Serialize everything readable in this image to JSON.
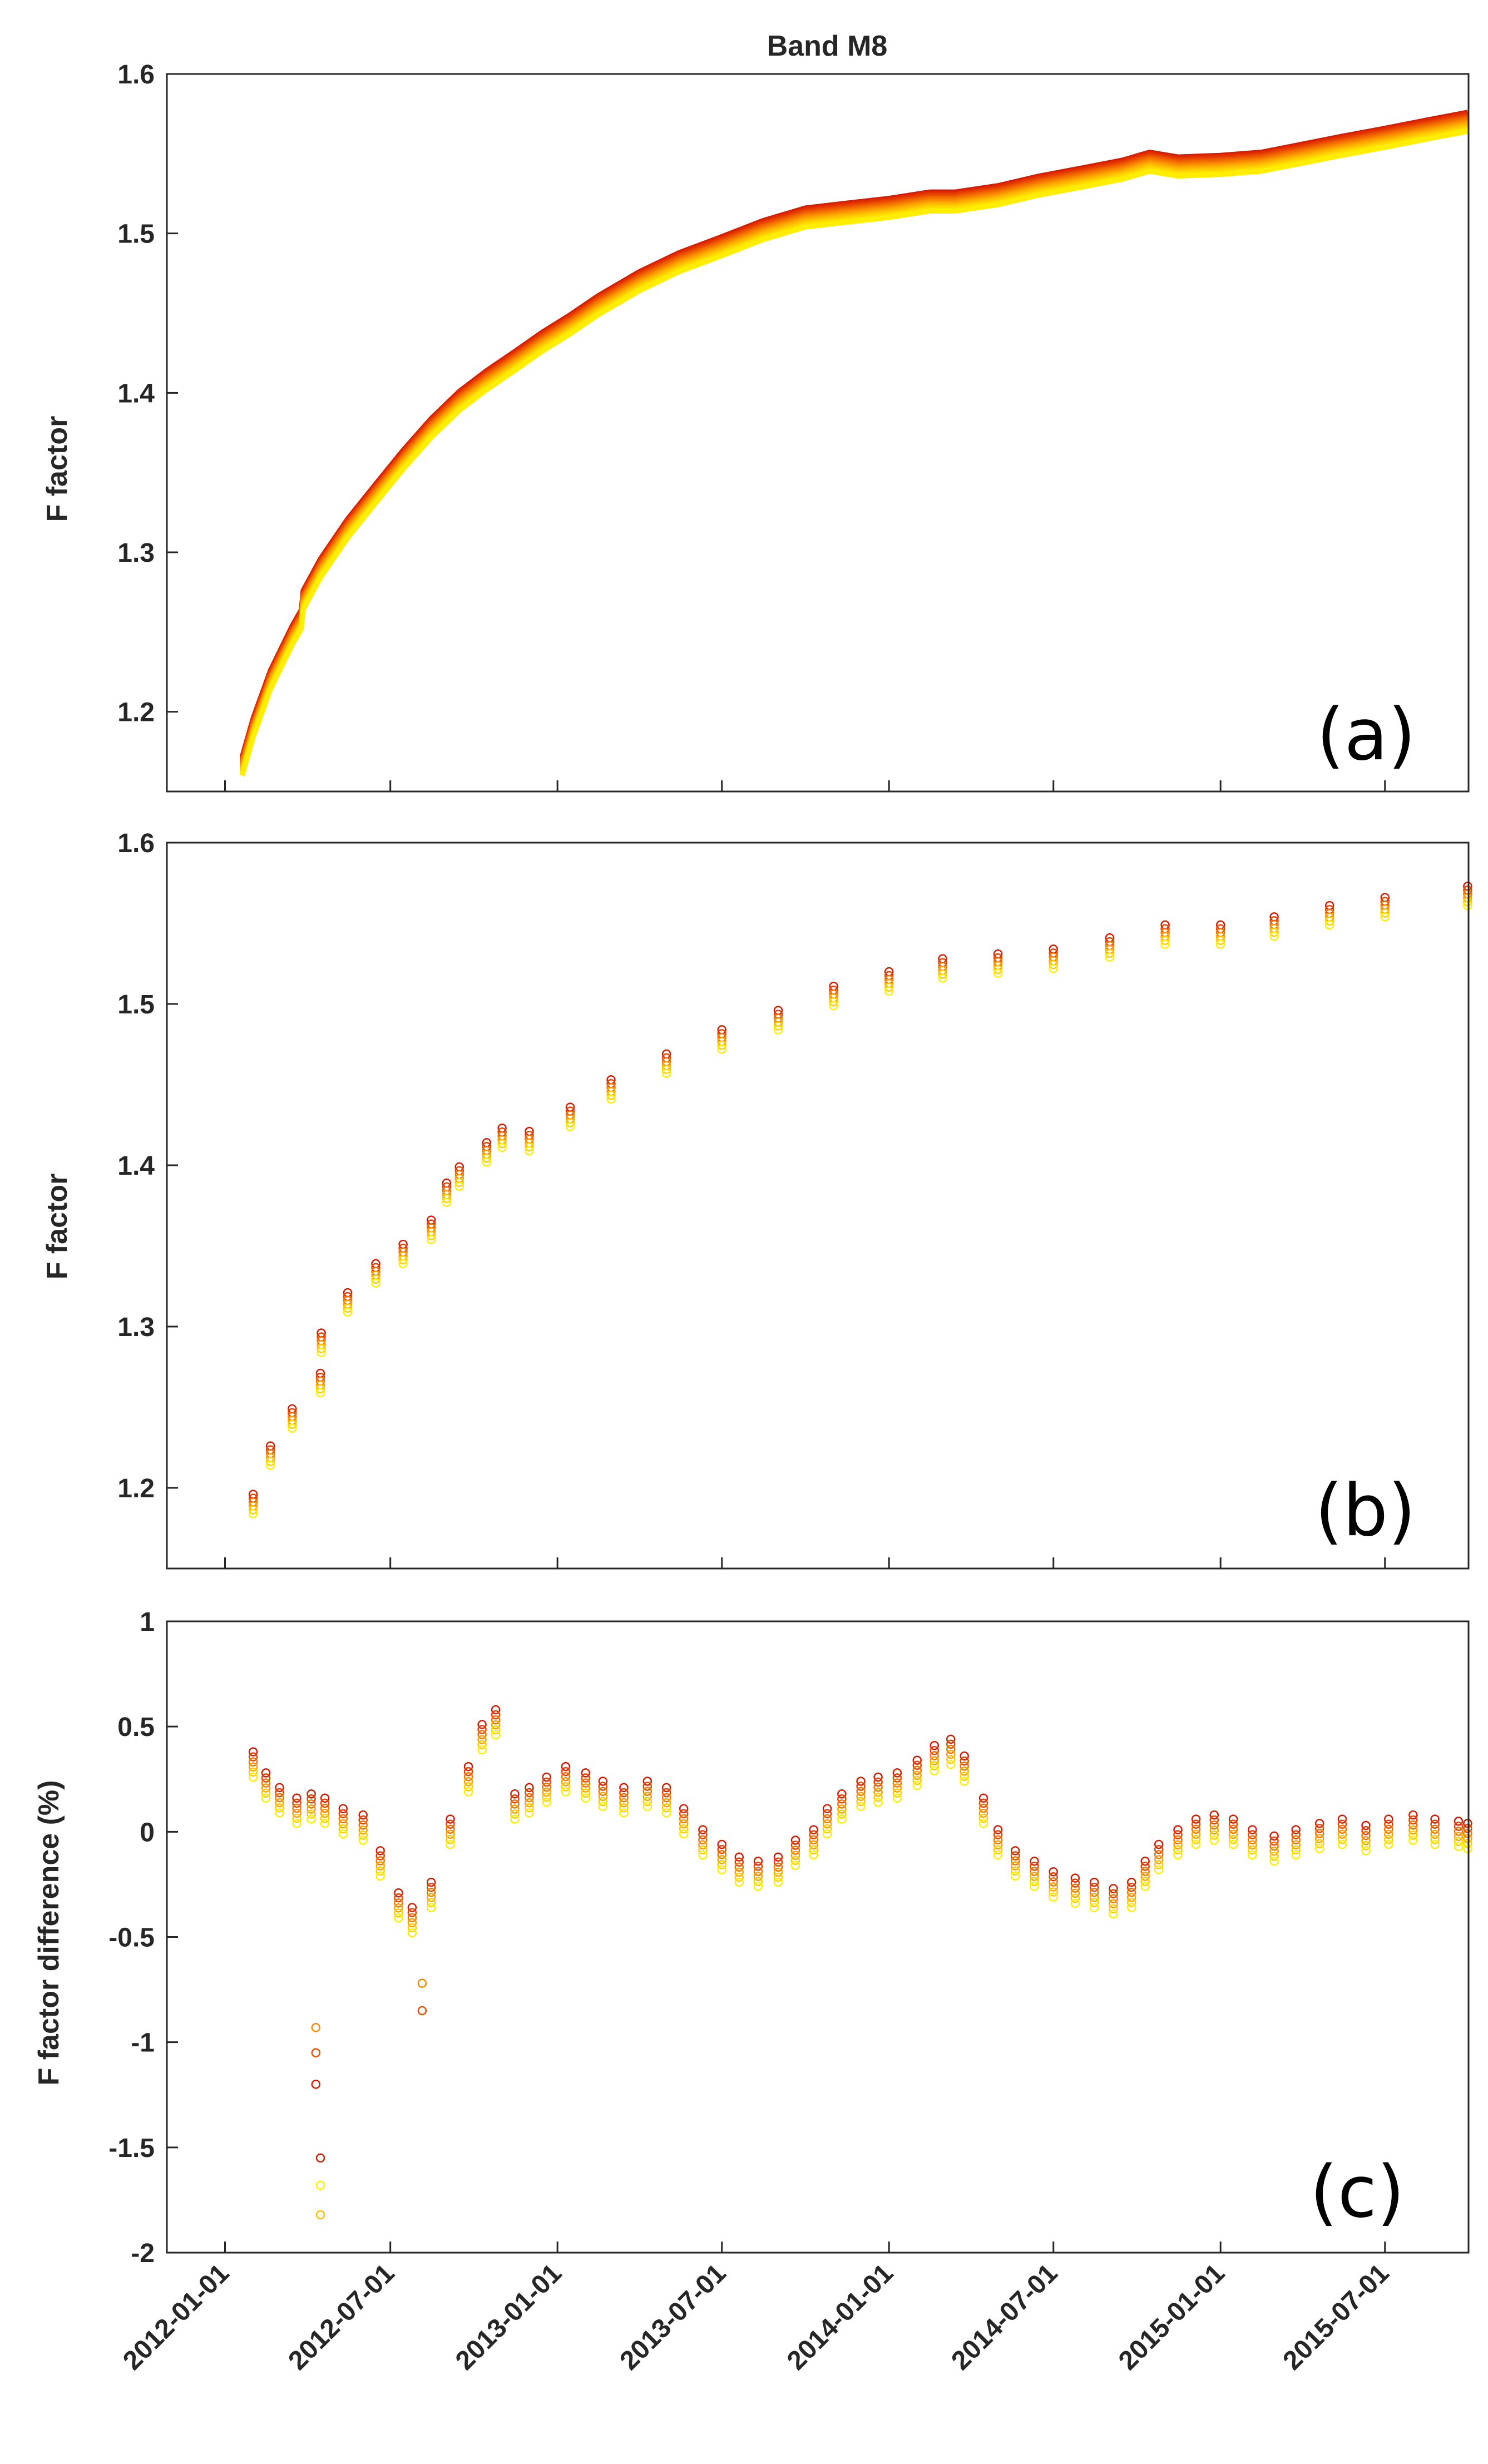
{
  "figure": {
    "title": "Band M8",
    "x_tick_labels": [
      "2012-01-01",
      "2012-07-01",
      "2013-01-01",
      "2013-07-01",
      "2014-01-01",
      "2014-07-01",
      "2015-01-01",
      "2015-07-01"
    ]
  },
  "colors": {
    "axis": "#262626",
    "series_gradient": [
      "#d81b00",
      "#e43a00",
      "#f06400",
      "#f88a00",
      "#fcb000",
      "#ffd000",
      "#ffee00"
    ]
  },
  "chart_data": [
    {
      "type": "line",
      "panel_label": "(a)",
      "title": "Band M8",
      "xlabel": "",
      "ylabel": "F factor",
      "xlim": [
        "2011-10-29",
        "2015-10-01"
      ],
      "ylim": [
        1.15,
        1.6
      ],
      "yticks": [
        1.2,
        1.3,
        1.4,
        1.5,
        1.6
      ],
      "ytick_labels": [
        "1.2",
        "1.3",
        "1.4",
        "1.5",
        "1.6"
      ],
      "xticks": [
        "2012-01-01",
        "2012-07-01",
        "2013-01-01",
        "2013-07-01",
        "2014-01-01",
        "2014-07-01",
        "2015-01-01",
        "2015-07-01"
      ],
      "series_count": 16,
      "series_spread": 0.012,
      "x": [
        "2012-01-20",
        "2012-02-01",
        "2012-02-20",
        "2012-03-15",
        "2012-03-25",
        "2012-03-27",
        "2012-04-15",
        "2012-05-15",
        "2012-06-15",
        "2012-07-15",
        "2012-08-15",
        "2012-09-15",
        "2012-10-15",
        "2012-11-15",
        "2012-12-15",
        "2013-01-15",
        "2013-02-15",
        "2013-04-01",
        "2013-05-15",
        "2013-07-01",
        "2013-08-15",
        "2013-10-01",
        "2013-11-15",
        "2014-01-01",
        "2014-02-15",
        "2014-03-15",
        "2014-05-01",
        "2014-06-15",
        "2014-08-01",
        "2014-09-15",
        "2014-10-15",
        "2014-11-15",
        "2015-01-01",
        "2015-02-15",
        "2015-04-01",
        "2015-05-15",
        "2015-07-01",
        "2015-08-15",
        "2015-09-30"
      ],
      "values": [
        1.166,
        1.19,
        1.22,
        1.248,
        1.258,
        1.27,
        1.29,
        1.315,
        1.337,
        1.358,
        1.378,
        1.395,
        1.408,
        1.42,
        1.432,
        1.443,
        1.455,
        1.47,
        1.482,
        1.492,
        1.502,
        1.51,
        1.513,
        1.516,
        1.52,
        1.52,
        1.524,
        1.53,
        1.535,
        1.54,
        1.545,
        1.542,
        1.543,
        1.545,
        1.55,
        1.555,
        1.56,
        1.565,
        1.57
      ]
    },
    {
      "type": "scatter",
      "panel_label": "(b)",
      "xlabel": "",
      "ylabel": "F factor",
      "xlim": [
        "2011-10-29",
        "2015-10-01"
      ],
      "ylim": [
        1.15,
        1.6
      ],
      "yticks": [
        1.2,
        1.3,
        1.4,
        1.5,
        1.6
      ],
      "ytick_labels": [
        "1.2",
        "1.3",
        "1.4",
        "1.5",
        "1.6"
      ],
      "xticks": [
        "2012-01-01",
        "2012-07-01",
        "2013-01-01",
        "2013-07-01",
        "2014-01-01",
        "2014-07-01",
        "2015-01-01",
        "2015-07-01"
      ],
      "series_count": 6,
      "series_spread": 0.012,
      "x": [
        "2012-02-01",
        "2012-02-20",
        "2012-03-15",
        "2012-04-15",
        "2012-04-16",
        "2012-05-15",
        "2012-06-15",
        "2012-07-15",
        "2012-08-15",
        "2012-09-01",
        "2012-09-15",
        "2012-10-15",
        "2012-11-01",
        "2012-12-01",
        "2013-01-15",
        "2013-03-01",
        "2013-05-01",
        "2013-07-01",
        "2013-09-01",
        "2013-11-01",
        "2014-01-01",
        "2014-03-01",
        "2014-05-01",
        "2014-07-01",
        "2014-09-01",
        "2014-11-01",
        "2015-01-01",
        "2015-03-01",
        "2015-05-01",
        "2015-07-01",
        "2015-09-30"
      ],
      "values": [
        1.19,
        1.22,
        1.243,
        1.265,
        1.29,
        1.315,
        1.333,
        1.345,
        1.36,
        1.383,
        1.393,
        1.408,
        1.417,
        1.415,
        1.43,
        1.447,
        1.463,
        1.478,
        1.49,
        1.505,
        1.514,
        1.522,
        1.525,
        1.528,
        1.535,
        1.543,
        1.543,
        1.548,
        1.555,
        1.56,
        1.567
      ]
    },
    {
      "type": "scatter",
      "panel_label": "(c)",
      "xlabel": "",
      "ylabel": "F factor difference (%)",
      "xlim": [
        "2011-10-29",
        "2015-10-01"
      ],
      "ylim": [
        -2,
        1
      ],
      "yticks": [
        -2,
        -1.5,
        -1,
        -0.5,
        0,
        0.5,
        1
      ],
      "ytick_labels": [
        "-2",
        "-1.5",
        "-1",
        "-0.5",
        "0",
        "0.5",
        "1"
      ],
      "xticks": [
        "2012-01-01",
        "2012-07-01",
        "2013-01-01",
        "2013-07-01",
        "2014-01-01",
        "2014-07-01",
        "2015-01-01",
        "2015-07-01"
      ],
      "series_count": 6,
      "series_spread": 0.12,
      "x": [
        "2012-02-01",
        "2012-02-15",
        "2012-03-01",
        "2012-03-20",
        "2012-04-05",
        "2012-04-20",
        "2012-05-10",
        "2012-06-01",
        "2012-06-20",
        "2012-07-10",
        "2012-07-25",
        "2012-08-15",
        "2012-09-05",
        "2012-09-25",
        "2012-10-10",
        "2012-10-25",
        "2012-11-15",
        "2012-12-01",
        "2012-12-20",
        "2013-01-10",
        "2013-02-01",
        "2013-02-20",
        "2013-03-15",
        "2013-04-10",
        "2013-05-01",
        "2013-05-20",
        "2013-06-10",
        "2013-07-01",
        "2013-07-20",
        "2013-08-10",
        "2013-09-01",
        "2013-09-20",
        "2013-10-10",
        "2013-10-25",
        "2013-11-10",
        "2013-12-01",
        "2013-12-20",
        "2014-01-10",
        "2014-02-01",
        "2014-02-20",
        "2014-03-10",
        "2014-03-25",
        "2014-04-15",
        "2014-05-01",
        "2014-05-20",
        "2014-06-10",
        "2014-07-01",
        "2014-07-25",
        "2014-08-15",
        "2014-09-05",
        "2014-09-25",
        "2014-10-10",
        "2014-10-25",
        "2014-11-15",
        "2014-12-05",
        "2014-12-25",
        "2015-01-15",
        "2015-02-05",
        "2015-03-01",
        "2015-03-25",
        "2015-04-20",
        "2015-05-15",
        "2015-06-10",
        "2015-07-05",
        "2015-08-01",
        "2015-08-25",
        "2015-09-20",
        "2015-09-30"
      ],
      "values": [
        0.32,
        0.22,
        0.15,
        0.1,
        0.12,
        0.1,
        0.05,
        0.02,
        -0.15,
        -0.35,
        -0.42,
        -0.3,
        0.0,
        0.25,
        0.45,
        0.52,
        0.12,
        0.15,
        0.2,
        0.25,
        0.22,
        0.18,
        0.15,
        0.18,
        0.15,
        0.05,
        -0.05,
        -0.12,
        -0.18,
        -0.2,
        -0.18,
        -0.1,
        -0.05,
        0.05,
        0.12,
        0.18,
        0.2,
        0.22,
        0.28,
        0.35,
        0.38,
        0.3,
        0.1,
        -0.05,
        -0.15,
        -0.2,
        -0.25,
        -0.28,
        -0.3,
        -0.33,
        -0.3,
        -0.2,
        -0.12,
        -0.05,
        0.0,
        0.02,
        0.0,
        -0.05,
        -0.08,
        -0.05,
        -0.02,
        0.0,
        -0.03,
        0.0,
        0.02,
        0.0,
        -0.01,
        -0.02
      ],
      "outliers": [
        {
          "x": "2012-04-10",
          "y": -1.2
        },
        {
          "x": "2012-04-10",
          "y": -1.05
        },
        {
          "x": "2012-04-10",
          "y": -0.93
        },
        {
          "x": "2012-04-15",
          "y": -1.82
        },
        {
          "x": "2012-04-15",
          "y": -1.68
        },
        {
          "x": "2012-04-15",
          "y": -1.55
        },
        {
          "x": "2012-08-05",
          "y": -0.85
        },
        {
          "x": "2012-08-05",
          "y": -0.72
        }
      ]
    }
  ]
}
